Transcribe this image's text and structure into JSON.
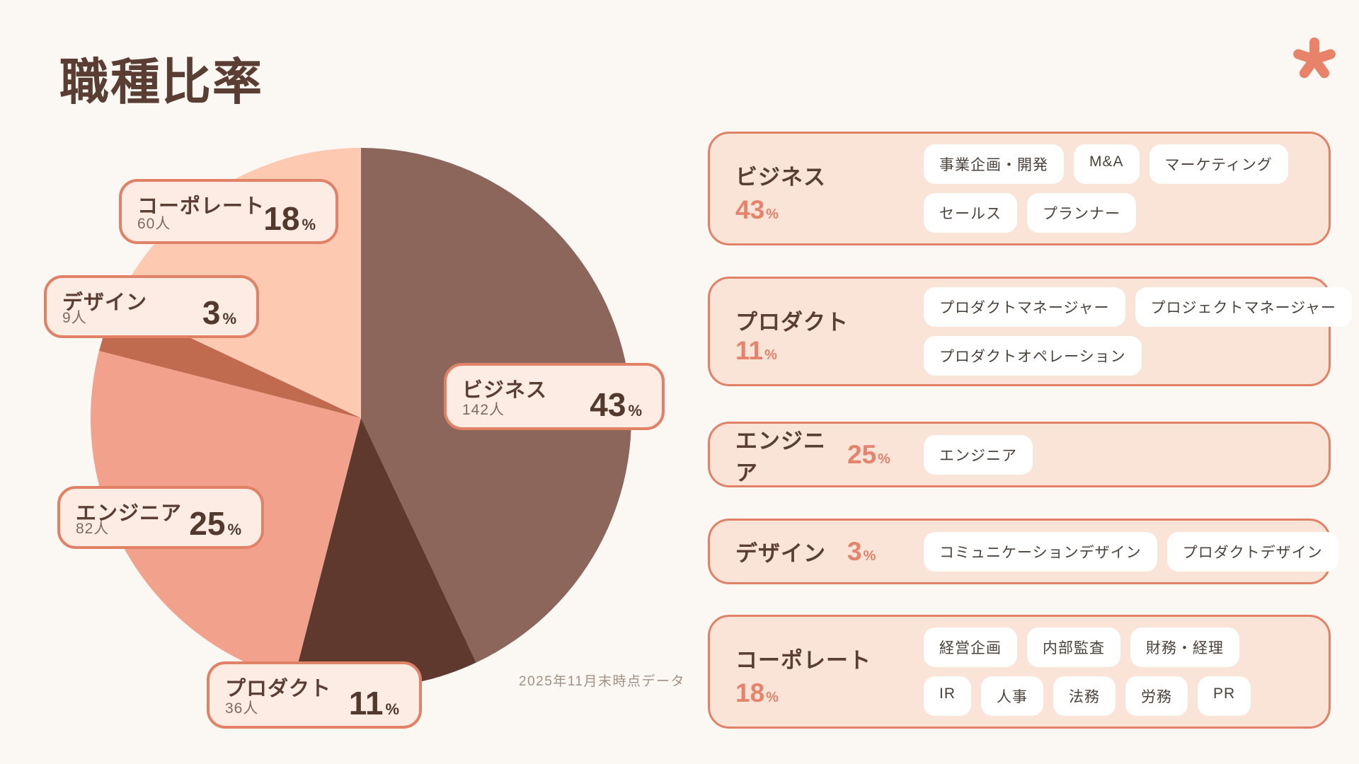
{
  "page": {
    "title": "職種比率",
    "footnote": "2025年11月末時点データ"
  },
  "units": {
    "people": "人",
    "percent": "%"
  },
  "colors": {
    "background": "#fbf8f3",
    "title_text": "#5a3e33",
    "accent_coral": "#e8836a",
    "card_border": "#e18166",
    "pie_label_bg": "#fdece3",
    "category_card_bg": "#fae3d7",
    "tag_bg": "#ffffff",
    "percent_coral_text": "#e4846c",
    "muted_text": "#a29184"
  },
  "chart_data": {
    "type": "pie",
    "title": "職種比率",
    "direction": "clockwise",
    "start_angle_deg": 0,
    "note": "2025年11月末時点データ",
    "legend_position": "floating-labels",
    "slices": [
      {
        "label": "ビジネス",
        "percent": 43,
        "count": 142,
        "color": "#8c655b"
      },
      {
        "label": "プロダクト",
        "percent": 11,
        "count": 36,
        "color": "#5f382e"
      },
      {
        "label": "エンジニア",
        "percent": 25,
        "count": 82,
        "color": "#f2a28c"
      },
      {
        "label": "デザイン",
        "percent": 3,
        "count": 9,
        "color": "#c06a50"
      },
      {
        "label": "コーポレート",
        "percent": 18,
        "count": 60,
        "color": "#fec9b1"
      }
    ]
  },
  "categories": [
    {
      "name": "ビジネス",
      "percent": 43,
      "tag_rows": [
        [
          "事業企画・開発",
          "M&A",
          "マーケティング"
        ],
        [
          "セールス",
          "プランナー"
        ]
      ]
    },
    {
      "name": "プロダクト",
      "percent": 11,
      "tag_rows": [
        [
          "プロダクトマネージャー",
          "プロジェクトマネージャー"
        ],
        [
          "プロダクトオペレーション"
        ]
      ]
    },
    {
      "name": "エンジニア",
      "percent": 25,
      "tag_rows": [
        [
          "エンジニア"
        ]
      ]
    },
    {
      "name": "デザイン",
      "percent": 3,
      "tag_rows": [
        [
          "コミュニケーションデザイン",
          "プロダクトデザイン"
        ]
      ]
    },
    {
      "name": "コーポレート",
      "percent": 18,
      "tag_rows": [
        [
          "経営企画",
          "内部監査",
          "財務・経理"
        ],
        [
          "IR",
          "人事",
          "法務",
          "労務",
          "PR"
        ]
      ]
    }
  ]
}
